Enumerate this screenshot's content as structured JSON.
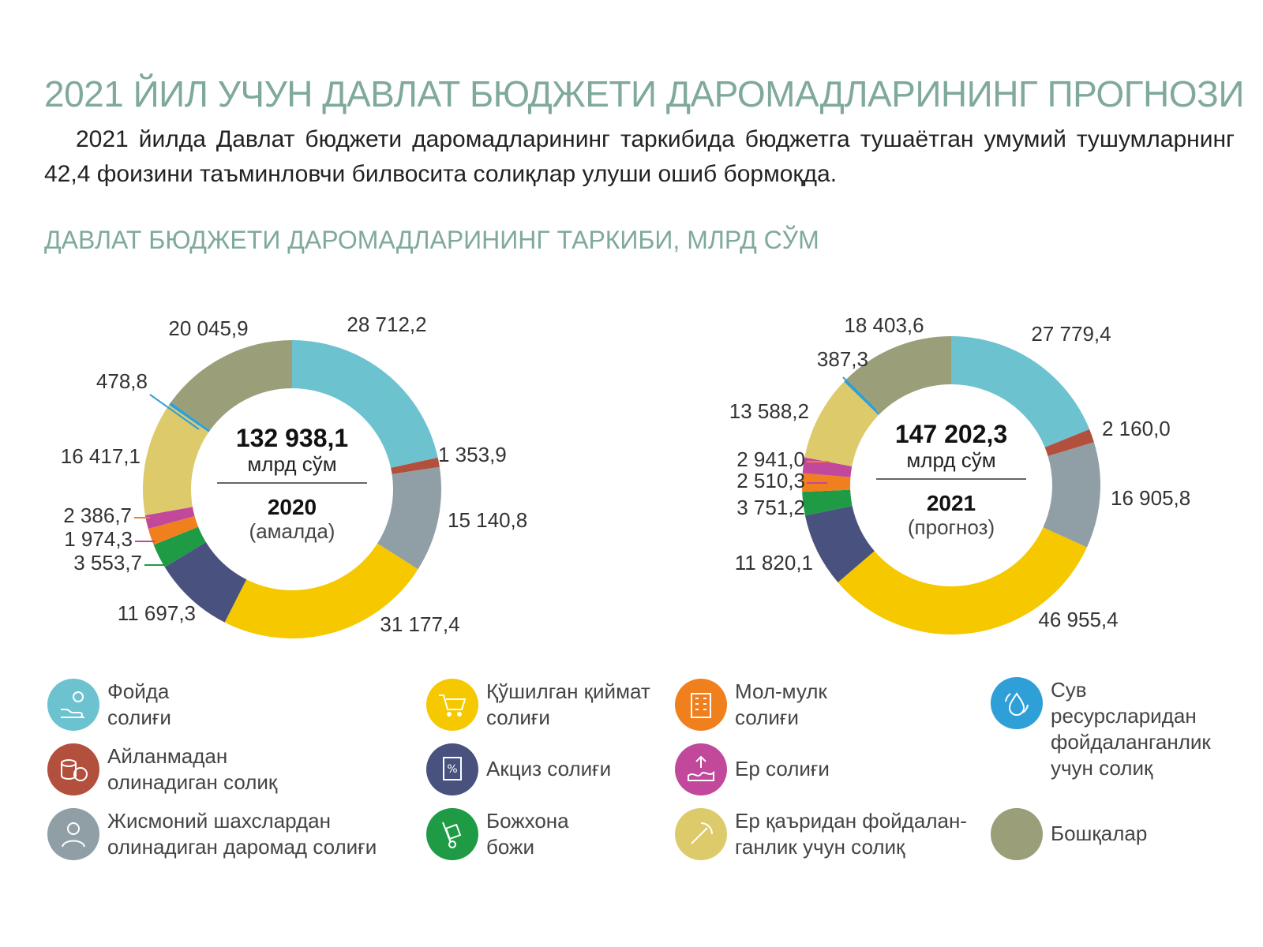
{
  "header": {
    "title": "2021 ЙИЛ УЧУН ДАВЛАТ БЮДЖЕТИ ДАРОМАДЛАРИНИНГ ПРОГНОЗИ",
    "intro": "2021 йилда Давлат бюджети даромадларининг таркибида бюджетга тушаётган умумий тушумларнинг 42,4 фоизини таъминловчи билвосита солиқлар улуши ошиб бормоқда.",
    "subtitle": "ДАВЛАТ БЮДЖЕТИ ДАРОМАДЛАРИНИНГ ТАРКИБИ, МЛРД СЎМ"
  },
  "chart_data": [
    {
      "type": "pie",
      "donut": true,
      "center": {
        "total": "132 938,1",
        "unit": "млрд сўм",
        "year": "2020",
        "note": "(амалда)"
      },
      "categories": [
        "Фойда солиғи",
        "Айланмадан олинадиган солиқ",
        "Жисмоний шахслардан олинадиган даромад солиғи",
        "Қўшилган қиймат солиғи",
        "Акциз солиғи",
        "Божхона божи",
        "Ер солиғи",
        "Мол-мулк солиғи",
        "Ер қаъридан фойдаланганлик учун солиқ",
        "Сув ресурсларидан фойдаланганлик учун солиқ",
        "Бошқалар"
      ],
      "values": [
        28712.2,
        1353.9,
        15140.8,
        31177.4,
        11697.3,
        3553.7,
        2386.7,
        1974.3,
        16417.1,
        478.8,
        20045.9
      ],
      "value_labels": [
        "28 712,2",
        "1 353,9",
        "15 140,8",
        "31 177,4",
        "11 697,3",
        "3 553,7",
        "2 386,7",
        "1 974,3",
        "16 417,1",
        "478,8",
        "20 045,9"
      ]
    },
    {
      "type": "pie",
      "donut": true,
      "center": {
        "total": "147 202,3",
        "unit": "млрд сўм",
        "year": "2021",
        "note": "(прогноз)"
      },
      "categories": [
        "Фойда солиғи",
        "Айланмадан олинадиган солиқ",
        "Жисмоний шахслардан олинадиган даромад солиғи",
        "Қўшилган қиймат солиғи",
        "Акциз солиғи",
        "Божхона божи",
        "Ер солиғи",
        "Мол-мулк солиғи",
        "Ер қаъридан фойдаланганлик учун солиқ",
        "Сув ресурсларидан фойдаланганлик учун солиқ",
        "Бошқалар"
      ],
      "values": [
        27779.4,
        2160.0,
        16905.8,
        46955.4,
        11820.1,
        3751.2,
        2941.0,
        2510.3,
        13588.2,
        387.3,
        18403.6
      ],
      "value_labels": [
        "27 779,4",
        "2 160,0",
        "16 905,8",
        "46 955,4",
        "11 820,1",
        "3 751,2",
        "2 941,0",
        "2 510,3",
        "13 588,2",
        "387,3",
        "18 403,6"
      ]
    }
  ],
  "colors": [
    "#6cc3cf",
    "#b34f3d",
    "#909fa6",
    "#f5c800",
    "#49527f",
    "#1f9b45",
    "#f07f1e",
    "#c2489b",
    "#dcca6b",
    "#2f9fd8",
    "#9a9f79"
  ],
  "legend": [
    {
      "label": "Фойда\nсолиғи",
      "icon": "hand-coins-icon"
    },
    {
      "label": "Айланмадан\nолинадиган солиқ",
      "icon": "coin-stack-icon"
    },
    {
      "label": "Жисмоний шахслардан\nолинадиган даромад солиғи",
      "icon": "person-icon"
    },
    {
      "label": "Қўшилган қиймат\nсолиғи",
      "icon": "cart-icon"
    },
    {
      "label": "Акциз солиғи",
      "icon": "stamp-icon"
    },
    {
      "label": "Божхона\nбожи",
      "icon": "hand-truck-icon"
    },
    {
      "label": "Мол-мулк\nсолиғи",
      "icon": "building-icon"
    },
    {
      "label": "Ер солиғи",
      "icon": "land-icon"
    },
    {
      "label": "Ер қаъридан фойдалан-\nганлик учун солиқ",
      "icon": "mining-icon"
    },
    {
      "label": "Сув\nресурсларидан\nфойдаланганлик\nучун солиқ",
      "icon": "water-drop-icon"
    },
    {
      "label": "Бошқалар",
      "icon": ""
    }
  ]
}
